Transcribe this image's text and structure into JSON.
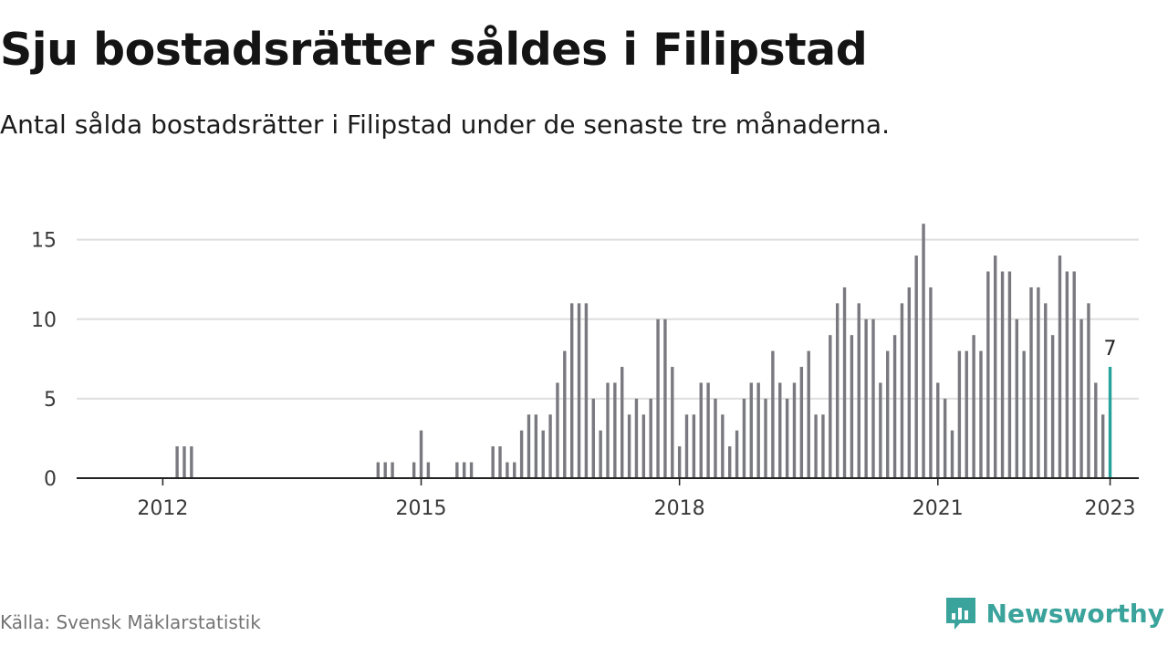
{
  "title": "Sju bostadsrätter såldes i Filipstad",
  "subtitle": "Antal sålda bostadsrätter i Filipstad under de senaste tre månaderna.",
  "source": "Källa: Svensk Mäklarstatistik",
  "brand": {
    "name": "Newsworthy",
    "icon": "newsworthy-logo-icon"
  },
  "colors": {
    "bar": "#797980",
    "highlight": "#24a29b",
    "grid": "#dedede",
    "axis": "#222222",
    "brand": "#3aa39b"
  },
  "chart_data": {
    "type": "bar",
    "title": "Sju bostadsrätter såldes i Filipstad",
    "subtitle": "Antal sålda bostadsrätter i Filipstad under de senaste tre månaderna.",
    "x_start": "2011-01",
    "x_end": "2023-05",
    "xlim": [
      "2011-01",
      "2023-05"
    ],
    "ylim": [
      0,
      16.3
    ],
    "y_ticks": [
      0,
      5,
      10,
      15
    ],
    "x_ticks": [
      {
        "label": "2012",
        "date": "2012-01"
      },
      {
        "label": "2015",
        "date": "2015-01"
      },
      {
        "label": "2018",
        "date": "2018-01"
      },
      {
        "label": "2021",
        "date": "2021-01"
      },
      {
        "label": "2023",
        "date": "2023-01"
      }
    ],
    "grid": "horizontal",
    "series": [
      {
        "values": [
          {
            "date": "2012-03",
            "value": 2
          },
          {
            "date": "2012-04",
            "value": 2
          },
          {
            "date": "2012-05",
            "value": 2
          },
          {
            "date": "2014-07",
            "value": 1
          },
          {
            "date": "2014-08",
            "value": 1
          },
          {
            "date": "2014-09",
            "value": 1
          },
          {
            "date": "2014-12",
            "value": 1
          },
          {
            "date": "2015-01",
            "value": 3
          },
          {
            "date": "2015-02",
            "value": 1
          },
          {
            "date": "2015-06",
            "value": 1
          },
          {
            "date": "2015-07",
            "value": 1
          },
          {
            "date": "2015-08",
            "value": 1
          },
          {
            "date": "2015-11",
            "value": 2
          },
          {
            "date": "2015-12",
            "value": 2
          },
          {
            "date": "2016-01",
            "value": 1
          },
          {
            "date": "2016-02",
            "value": 1
          },
          {
            "date": "2016-03",
            "value": 3
          },
          {
            "date": "2016-04",
            "value": 4
          },
          {
            "date": "2016-05",
            "value": 4
          },
          {
            "date": "2016-06",
            "value": 3
          },
          {
            "date": "2016-07",
            "value": 4
          },
          {
            "date": "2016-08",
            "value": 6
          },
          {
            "date": "2016-09",
            "value": 8
          },
          {
            "date": "2016-10",
            "value": 11
          },
          {
            "date": "2016-11",
            "value": 11
          },
          {
            "date": "2016-12",
            "value": 11
          },
          {
            "date": "2017-01",
            "value": 5
          },
          {
            "date": "2017-02",
            "value": 3
          },
          {
            "date": "2017-03",
            "value": 6
          },
          {
            "date": "2017-04",
            "value": 6
          },
          {
            "date": "2017-05",
            "value": 7
          },
          {
            "date": "2017-06",
            "value": 4
          },
          {
            "date": "2017-07",
            "value": 5
          },
          {
            "date": "2017-08",
            "value": 4
          },
          {
            "date": "2017-09",
            "value": 5
          },
          {
            "date": "2017-10",
            "value": 10
          },
          {
            "date": "2017-11",
            "value": 10
          },
          {
            "date": "2017-12",
            "value": 7
          },
          {
            "date": "2018-01",
            "value": 2
          },
          {
            "date": "2018-02",
            "value": 4
          },
          {
            "date": "2018-03",
            "value": 4
          },
          {
            "date": "2018-04",
            "value": 6
          },
          {
            "date": "2018-05",
            "value": 6
          },
          {
            "date": "2018-06",
            "value": 5
          },
          {
            "date": "2018-07",
            "value": 4
          },
          {
            "date": "2018-08",
            "value": 2
          },
          {
            "date": "2018-09",
            "value": 3
          },
          {
            "date": "2018-10",
            "value": 5
          },
          {
            "date": "2018-11",
            "value": 6
          },
          {
            "date": "2018-12",
            "value": 6
          },
          {
            "date": "2019-01",
            "value": 5
          },
          {
            "date": "2019-02",
            "value": 8
          },
          {
            "date": "2019-03",
            "value": 6
          },
          {
            "date": "2019-04",
            "value": 5
          },
          {
            "date": "2019-05",
            "value": 6
          },
          {
            "date": "2019-06",
            "value": 7
          },
          {
            "date": "2019-07",
            "value": 8
          },
          {
            "date": "2019-08",
            "value": 4
          },
          {
            "date": "2019-09",
            "value": 4
          },
          {
            "date": "2019-10",
            "value": 9
          },
          {
            "date": "2019-11",
            "value": 11
          },
          {
            "date": "2019-12",
            "value": 12
          },
          {
            "date": "2020-01",
            "value": 9
          },
          {
            "date": "2020-02",
            "value": 11
          },
          {
            "date": "2020-03",
            "value": 10
          },
          {
            "date": "2020-04",
            "value": 10
          },
          {
            "date": "2020-05",
            "value": 6
          },
          {
            "date": "2020-06",
            "value": 8
          },
          {
            "date": "2020-07",
            "value": 9
          },
          {
            "date": "2020-08",
            "value": 11
          },
          {
            "date": "2020-09",
            "value": 12
          },
          {
            "date": "2020-10",
            "value": 14
          },
          {
            "date": "2020-11",
            "value": 16
          },
          {
            "date": "2020-12",
            "value": 12
          },
          {
            "date": "2021-01",
            "value": 6
          },
          {
            "date": "2021-02",
            "value": 5
          },
          {
            "date": "2021-03",
            "value": 3
          },
          {
            "date": "2021-04",
            "value": 8
          },
          {
            "date": "2021-05",
            "value": 8
          },
          {
            "date": "2021-06",
            "value": 9
          },
          {
            "date": "2021-07",
            "value": 8
          },
          {
            "date": "2021-08",
            "value": 13
          },
          {
            "date": "2021-09",
            "value": 14
          },
          {
            "date": "2021-10",
            "value": 13
          },
          {
            "date": "2021-11",
            "value": 13
          },
          {
            "date": "2021-12",
            "value": 10
          },
          {
            "date": "2022-01",
            "value": 8
          },
          {
            "date": "2022-02",
            "value": 12
          },
          {
            "date": "2022-03",
            "value": 12
          },
          {
            "date": "2022-04",
            "value": 11
          },
          {
            "date": "2022-05",
            "value": 9
          },
          {
            "date": "2022-06",
            "value": 14
          },
          {
            "date": "2022-07",
            "value": 13
          },
          {
            "date": "2022-08",
            "value": 13
          },
          {
            "date": "2022-09",
            "value": 10
          },
          {
            "date": "2022-10",
            "value": 11
          },
          {
            "date": "2022-11",
            "value": 6
          },
          {
            "date": "2022-12",
            "value": 4
          },
          {
            "date": "2023-01",
            "value": 7
          }
        ]
      }
    ],
    "highlight": {
      "date": "2023-01",
      "value": 7,
      "label": "7"
    }
  }
}
